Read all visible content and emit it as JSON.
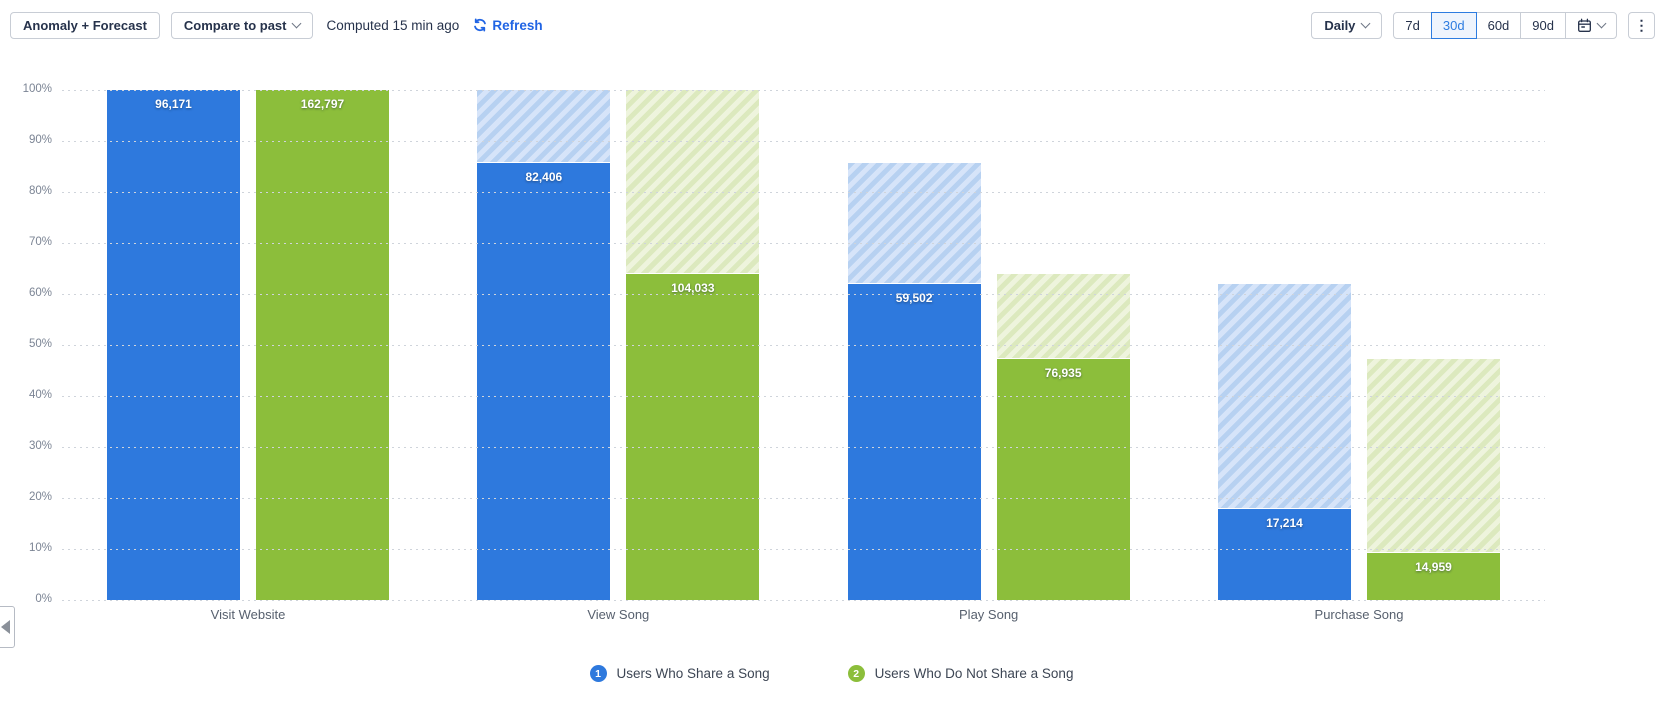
{
  "toolbar": {
    "anomaly_forecast_label": "Anomaly + Forecast",
    "compare_label": "Compare to past",
    "computed_label": "Computed 15 min ago",
    "refresh_label": "Refresh",
    "interval_label": "Daily",
    "ranges": [
      "7d",
      "30d",
      "60d",
      "90d"
    ],
    "selected_range": "30d",
    "kebab_icon": "⋮"
  },
  "colors": {
    "series1_solid": "#2E79DD",
    "series1_hatch_a": "#B7D1F1",
    "series1_hatch_b": "#D6E4F9",
    "series2_solid": "#8CBE3B",
    "series2_hatch_a": "#DCE9BE",
    "series2_hatch_b": "#EEF4DD",
    "selected_range_blue": "#2D7CE0",
    "link_blue": "#2064E4"
  },
  "chart_data": {
    "type": "bar",
    "subtype": "grouped-funnel-conversion",
    "title": "",
    "categories": [
      "Visit Website",
      "View Song",
      "Play Song",
      "Purchase Song"
    ],
    "series": [
      {
        "name": "Users Who Share a Song",
        "badge": "1",
        "values": [
          96171,
          82406,
          59502,
          17214
        ],
        "value_labels": [
          "96,171",
          "82,406",
          "59,502",
          "17,214"
        ],
        "pct_of_first": [
          100,
          85.7,
          61.9,
          17.9
        ]
      },
      {
        "name": "Users Who Do Not Share a Song",
        "badge": "2",
        "values": [
          162797,
          104033,
          76935,
          14959
        ],
        "value_labels": [
          "162,797",
          "104,033",
          "76,935",
          "14,959"
        ],
        "pct_of_first": [
          100,
          63.9,
          47.3,
          9.2
        ]
      }
    ],
    "y_ticks": [
      "100%",
      "90%",
      "80%",
      "70%",
      "60%",
      "50%",
      "40%",
      "30%",
      "20%",
      "10%",
      "0%"
    ],
    "ylim": [
      0,
      100
    ],
    "grid": "dotted-horizontal",
    "legend_position": "bottom"
  }
}
